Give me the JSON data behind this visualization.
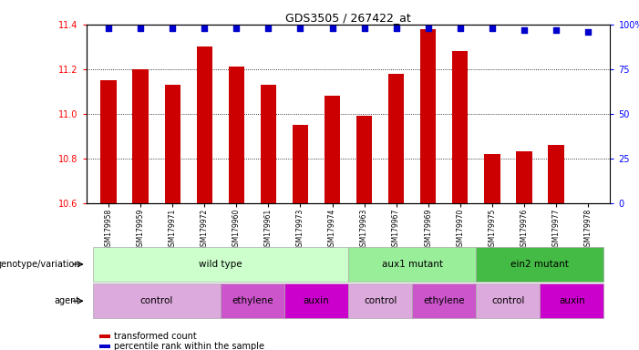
{
  "title": "GDS3505 / 267422_at",
  "samples": [
    "GSM179958",
    "GSM179959",
    "GSM179971",
    "GSM179972",
    "GSM179960",
    "GSM179961",
    "GSM179973",
    "GSM179974",
    "GSM179963",
    "GSM179967",
    "GSM179969",
    "GSM179970",
    "GSM179975",
    "GSM179976",
    "GSM179977",
    "GSM179978"
  ],
  "bar_values": [
    11.15,
    11.2,
    11.13,
    11.3,
    11.21,
    11.13,
    10.95,
    11.08,
    10.99,
    11.18,
    11.38,
    11.28,
    10.82,
    10.83,
    10.86,
    10.6
  ],
  "percentile_values": [
    98,
    98,
    98,
    98,
    98,
    98,
    98,
    98,
    98,
    98,
    98,
    98,
    98,
    97,
    97,
    96
  ],
  "ylim_left": [
    10.6,
    11.4
  ],
  "ylim_right": [
    0,
    100
  ],
  "yticks_left": [
    10.6,
    10.8,
    11.0,
    11.2,
    11.4
  ],
  "yticks_right": [
    0,
    25,
    50,
    75,
    100
  ],
  "bar_color": "#cc0000",
  "dot_color": "#0000cc",
  "genotype_groups": [
    {
      "label": "wild type",
      "start": 0,
      "end": 8,
      "color": "#ccffcc"
    },
    {
      "label": "aux1 mutant",
      "start": 8,
      "end": 12,
      "color": "#99ee99"
    },
    {
      "label": "ein2 mutant",
      "start": 12,
      "end": 16,
      "color": "#44bb44"
    }
  ],
  "agent_groups": [
    {
      "label": "control",
      "start": 0,
      "end": 4,
      "color": "#ddaadd"
    },
    {
      "label": "ethylene",
      "start": 4,
      "end": 6,
      "color": "#cc55cc"
    },
    {
      "label": "auxin",
      "start": 6,
      "end": 8,
      "color": "#cc00cc"
    },
    {
      "label": "control",
      "start": 8,
      "end": 10,
      "color": "#ddaadd"
    },
    {
      "label": "ethylene",
      "start": 10,
      "end": 12,
      "color": "#cc55cc"
    },
    {
      "label": "control",
      "start": 12,
      "end": 14,
      "color": "#ddaadd"
    },
    {
      "label": "auxin",
      "start": 14,
      "end": 16,
      "color": "#cc00cc"
    }
  ]
}
